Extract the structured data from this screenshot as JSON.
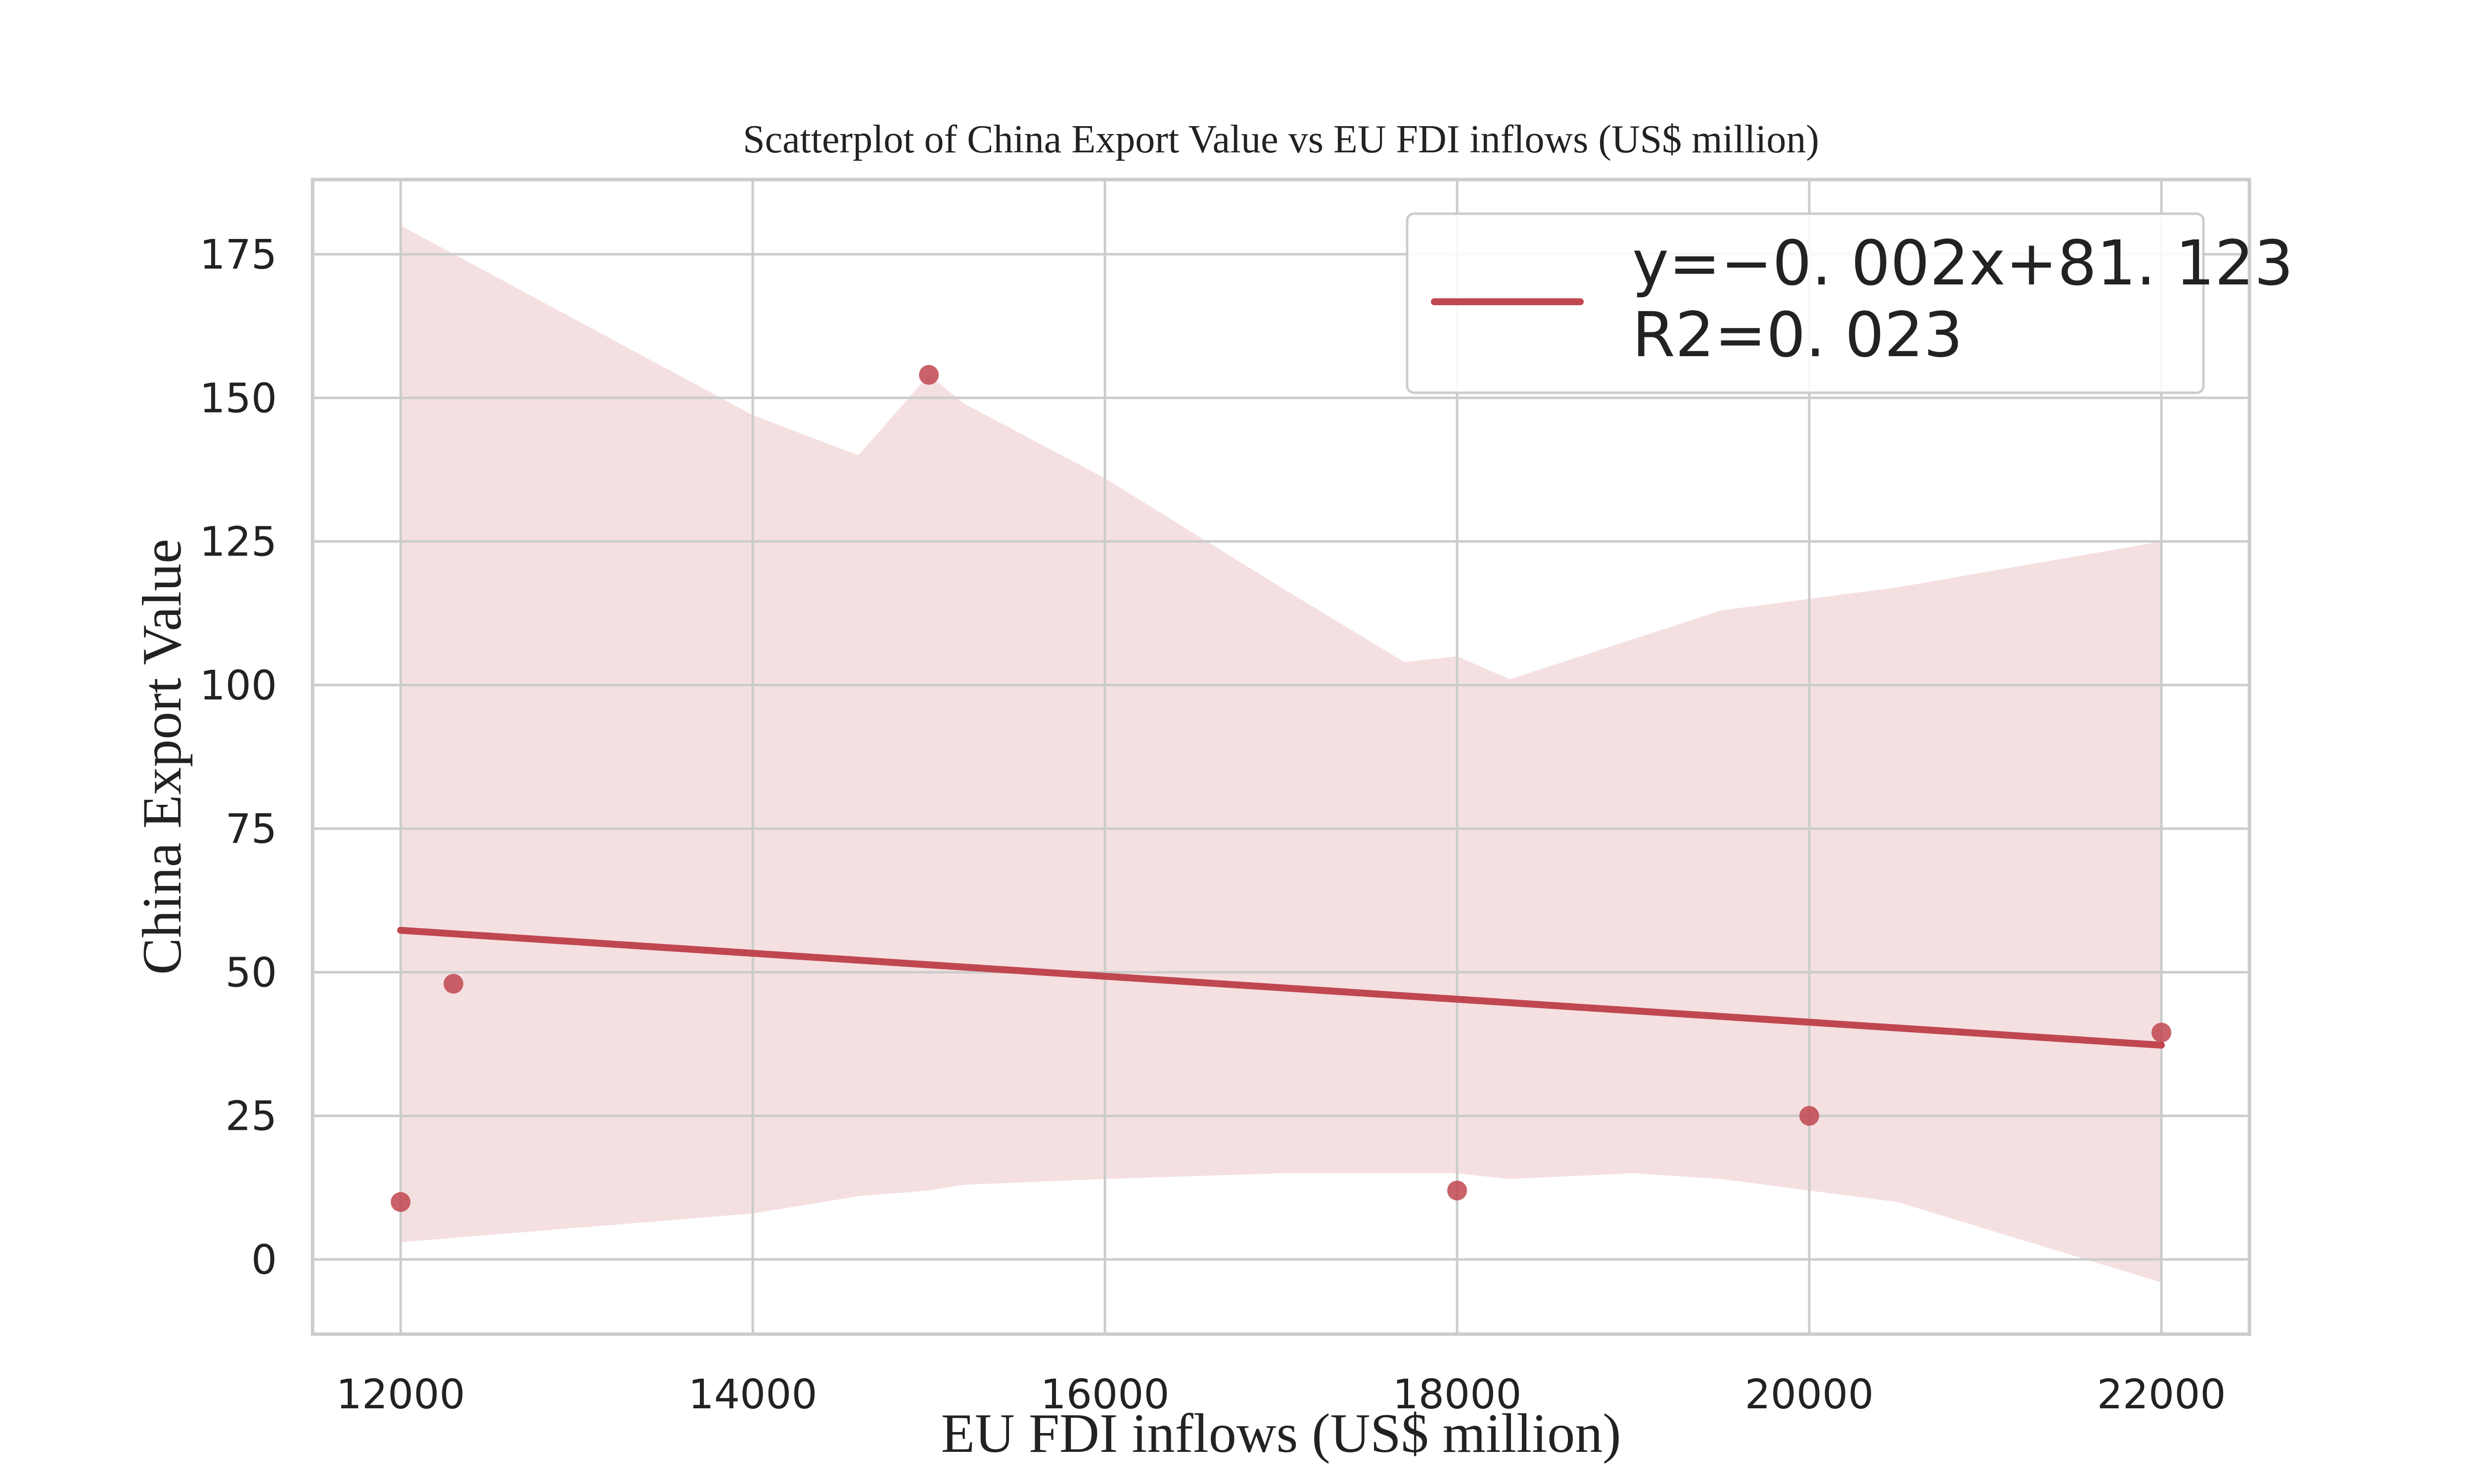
{
  "chart_data": {
    "type": "scatter",
    "title": "Scatterplot of China Export Value vs EU FDI inflows (US$ million)",
    "xlabel": "EU FDI inflows (US$ million)",
    "ylabel": "China Export Value",
    "xlim": [
      11500,
      22500
    ],
    "ylim": [
      -13,
      188
    ],
    "xticks": [
      12000,
      14000,
      16000,
      18000,
      20000,
      22000
    ],
    "yticks": [
      0,
      25,
      50,
      75,
      100,
      125,
      150,
      175
    ],
    "xtick_labels": [
      "12000",
      "14000",
      "16000",
      "18000",
      "20000",
      "22000"
    ],
    "ytick_labels": [
      "0",
      "25",
      "50",
      "75",
      "100",
      "125",
      "150",
      "175"
    ],
    "grid": true,
    "legend_position": "top-right",
    "legend": {
      "line1": "y=−0. 002x+81. 123",
      "line2": "R2=0. 023"
    },
    "points": [
      {
        "x": 12000,
        "y": 10
      },
      {
        "x": 12300,
        "y": 48
      },
      {
        "x": 15000,
        "y": 154
      },
      {
        "x": 18000,
        "y": 12
      },
      {
        "x": 20000,
        "y": 25
      },
      {
        "x": 22000,
        "y": 39.5
      }
    ],
    "fit_line": {
      "x": [
        12000,
        22000
      ],
      "y": [
        57.3,
        37.3
      ]
    },
    "confidence_band": {
      "x": [
        12000,
        14000,
        14600,
        15000,
        15200,
        16000,
        17000,
        17700,
        18000,
        18300,
        19000,
        19500,
        20500,
        22000
      ],
      "upper": [
        180,
        147,
        140,
        154,
        149,
        136,
        117,
        104,
        105,
        101,
        108,
        113,
        117,
        125
      ],
      "lower": [
        3,
        8,
        11,
        12,
        13,
        14,
        15,
        15,
        15,
        14,
        15,
        14,
        10,
        -4
      ]
    },
    "colors": {
      "points": "#c0474f",
      "line": "#c0474f",
      "band": "#f5e0e1",
      "grid": "#cccccc",
      "frame": "#cccccc",
      "text": "#222222"
    }
  }
}
